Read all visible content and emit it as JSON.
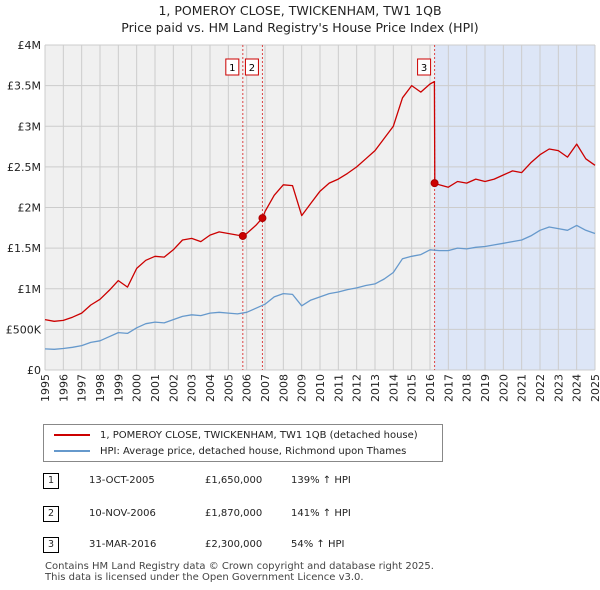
{
  "chart_data": {
    "type": "line",
    "title_line1": "1, POMEROY CLOSE, TWICKENHAM, TW1 1QB",
    "title_line2": "Price paid vs. HM Land Registry's House Price Index (HPI)",
    "ylim": [
      0,
      4000000
    ],
    "xlim": [
      1995,
      2025
    ],
    "y_ticks": [
      {
        "value": 0,
        "label": "£0"
      },
      {
        "value": 500000,
        "label": "£500K"
      },
      {
        "value": 1000000,
        "label": "£1M"
      },
      {
        "value": 1500000,
        "label": "£1.5M"
      },
      {
        "value": 2000000,
        "label": "£2M"
      },
      {
        "value": 2500000,
        "label": "£2.5M"
      },
      {
        "value": 3000000,
        "label": "£3M"
      },
      {
        "value": 3500000,
        "label": "£3.5M"
      },
      {
        "value": 4000000,
        "label": "£4M"
      }
    ],
    "x_ticks": [
      "1995",
      "1996",
      "1997",
      "1998",
      "1999",
      "2000",
      "2001",
      "2002",
      "2003",
      "2004",
      "2005",
      "2006",
      "2007",
      "2008",
      "2009",
      "2010",
      "2011",
      "2012",
      "2013",
      "2014",
      "2015",
      "2016",
      "2017",
      "2018",
      "2019",
      "2020",
      "2021",
      "2022",
      "2023",
      "2024",
      "2025"
    ],
    "series": [
      {
        "name": "1, POMEROY CLOSE, TWICKENHAM, TW1 1QB (detached house)",
        "color": "#cc0000",
        "x": [
          1995.0,
          1995.5,
          1996.0,
          1996.5,
          1997.0,
          1997.5,
          1998.0,
          1998.5,
          1999.0,
          1999.5,
          2000.0,
          2000.5,
          2001.0,
          2001.5,
          2002.0,
          2002.5,
          2003.0,
          2003.5,
          2004.0,
          2004.5,
          2005.0,
          2005.5,
          2005.79,
          2006.0,
          2006.5,
          2006.86,
          2007.0,
          2007.5,
          2008.0,
          2008.5,
          2009.0,
          2009.5,
          2010.0,
          2010.5,
          2011.0,
          2011.5,
          2012.0,
          2012.5,
          2013.0,
          2013.5,
          2014.0,
          2014.5,
          2015.0,
          2015.5,
          2016.0,
          2016.24,
          2016.26,
          2016.5,
          2017.0,
          2017.5,
          2018.0,
          2018.5,
          2019.0,
          2019.5,
          2020.0,
          2020.5,
          2021.0,
          2021.5,
          2022.0,
          2022.5,
          2023.0,
          2023.5,
          2024.0,
          2024.5,
          2025.0
        ],
        "values": [
          620000,
          600000,
          610000,
          650000,
          700000,
          800000,
          870000,
          980000,
          1100000,
          1020000,
          1250000,
          1350000,
          1400000,
          1390000,
          1480000,
          1600000,
          1620000,
          1580000,
          1660000,
          1700000,
          1680000,
          1660000,
          1650000,
          1680000,
          1780000,
          1870000,
          1950000,
          2150000,
          2280000,
          2270000,
          1900000,
          2050000,
          2200000,
          2300000,
          2350000,
          2420000,
          2500000,
          2600000,
          2700000,
          2850000,
          3000000,
          3350000,
          3500000,
          3420000,
          3520000,
          3550000,
          2300000,
          2280000,
          2250000,
          2320000,
          2300000,
          2350000,
          2320000,
          2350000,
          2400000,
          2450000,
          2430000,
          2550000,
          2650000,
          2720000,
          2700000,
          2620000,
          2780000,
          2600000,
          2520000
        ]
      },
      {
        "name": "HPI: Average price, detached house, Richmond upon Thames",
        "color": "#6699cc",
        "x": [
          1995.0,
          1995.5,
          1996.0,
          1996.5,
          1997.0,
          1997.5,
          1998.0,
          1998.5,
          1999.0,
          1999.5,
          2000.0,
          2000.5,
          2001.0,
          2001.5,
          2002.0,
          2002.5,
          2003.0,
          2003.5,
          2004.0,
          2004.5,
          2005.0,
          2005.5,
          2006.0,
          2006.5,
          2007.0,
          2007.5,
          2008.0,
          2008.5,
          2009.0,
          2009.5,
          2010.0,
          2010.5,
          2011.0,
          2011.5,
          2012.0,
          2012.5,
          2013.0,
          2013.5,
          2014.0,
          2014.5,
          2015.0,
          2015.5,
          2016.0,
          2016.5,
          2017.0,
          2017.5,
          2018.0,
          2018.5,
          2019.0,
          2019.5,
          2020.0,
          2020.5,
          2021.0,
          2021.5,
          2022.0,
          2022.5,
          2023.0,
          2023.5,
          2024.0,
          2024.5,
          2025.0
        ],
        "values": [
          260000,
          255000,
          265000,
          280000,
          300000,
          340000,
          360000,
          410000,
          460000,
          450000,
          520000,
          570000,
          590000,
          580000,
          620000,
          660000,
          680000,
          670000,
          700000,
          710000,
          700000,
          690000,
          710000,
          760000,
          810000,
          900000,
          940000,
          930000,
          790000,
          860000,
          900000,
          940000,
          960000,
          990000,
          1010000,
          1040000,
          1060000,
          1120000,
          1200000,
          1370000,
          1400000,
          1420000,
          1480000,
          1470000,
          1470000,
          1500000,
          1490000,
          1510000,
          1520000,
          1540000,
          1560000,
          1580000,
          1600000,
          1650000,
          1720000,
          1760000,
          1740000,
          1720000,
          1780000,
          1720000,
          1680000
        ]
      }
    ],
    "sales": [
      {
        "label": "1",
        "x": 2005.79,
        "value": 1650000,
        "date": "13-OCT-2005",
        "price": "£1,650,000",
        "hpi": "139% ↑ HPI"
      },
      {
        "label": "2",
        "x": 2006.86,
        "value": 1870000,
        "date": "10-NOV-2006",
        "price": "£1,870,000",
        "hpi": "141% ↑ HPI"
      },
      {
        "label": "3",
        "x": 2016.25,
        "value": 2300000,
        "date": "31-MAR-2016",
        "price": "£2,300,000",
        "hpi": "54% ↑ HPI"
      }
    ],
    "legend": {
      "property": "1, POMEROY CLOSE, TWICKENHAM, TW1 1QB (detached house)",
      "hpi": "HPI: Average price, detached house, Richmond upon Thames"
    },
    "colors": {
      "property": "#cc0000",
      "hpi": "#6699cc",
      "shade": "#dde6f7",
      "grid": "#cccccc",
      "vline": "#dd4444",
      "background": "#f0f0f0"
    }
  },
  "footer": {
    "line1": "Contains HM Land Registry data © Crown copyright and database right 2025.",
    "line2": "This data is licensed under the Open Government Licence v3.0."
  }
}
